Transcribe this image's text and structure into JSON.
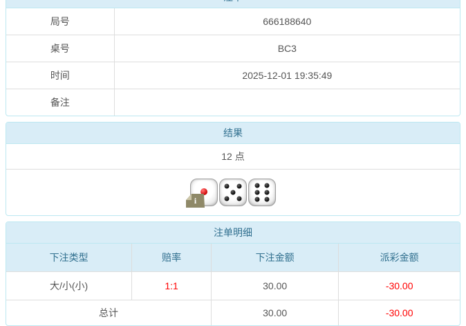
{
  "panel_bet": {
    "title": "注单",
    "rows": [
      {
        "label": "局号",
        "value": "666188640"
      },
      {
        "label": "桌号",
        "value": "BC3"
      },
      {
        "label": "时间",
        "value": "2025-12-01 19:35:49"
      },
      {
        "label": "备注",
        "value": ""
      }
    ]
  },
  "panel_result": {
    "title": "结果",
    "points": "12 点",
    "dice": [
      {
        "value": 1,
        "pip_color": "red",
        "broken_badge": true
      },
      {
        "value": 5,
        "pip_color": "black",
        "broken_badge": false
      },
      {
        "value": 6,
        "pip_color": "black",
        "broken_badge": false
      }
    ],
    "badge_label": "i"
  },
  "panel_details": {
    "title": "注单明细",
    "columns": [
      "下注类型",
      "赔率",
      "下注金额",
      "派彩金额"
    ],
    "rows": [
      {
        "bet_type": "大/小(小)",
        "odds": "1:1",
        "bet_amount": "30.00",
        "payout": "-30.00"
      }
    ],
    "total": {
      "label": "总计",
      "bet_amount": "30.00",
      "payout": "-30.00"
    }
  },
  "colors": {
    "header_bg": "#d9edf7",
    "header_text": "#31708f",
    "panel_border": "#bce8f1",
    "cell_border": "#dddddd",
    "body_text": "#555555",
    "negative": "#ff0000"
  }
}
